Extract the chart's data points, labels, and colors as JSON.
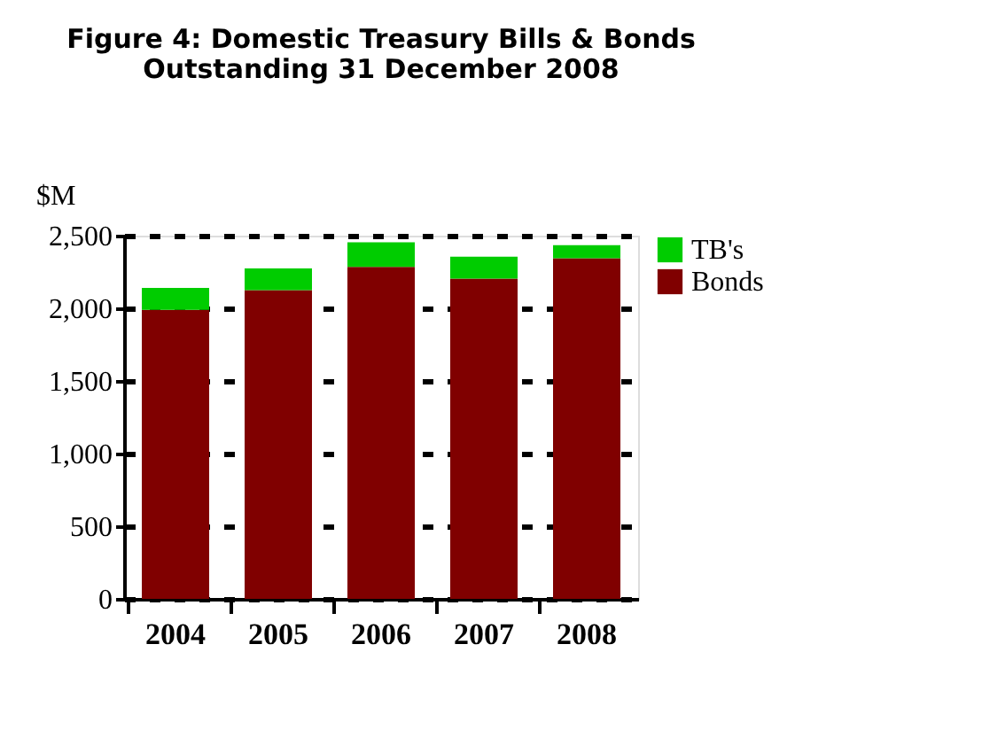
{
  "chart_data": {
    "type": "bar",
    "title": [
      "Figure 4: Domestic Treasury Bills & Bonds",
      "Outstanding 31 December  2008"
    ],
    "ylabel": "$M",
    "categories": [
      "2004",
      "2005",
      "2006",
      "2007",
      "2008"
    ],
    "stacked": true,
    "series": [
      {
        "name": "Bonds",
        "color": "#800000",
        "values": [
          1990,
          2125,
          2285,
          2205,
          2345
        ]
      },
      {
        "name": "TB's",
        "color": "#00cc00",
        "values": [
          150,
          150,
          170,
          150,
          90
        ]
      }
    ],
    "ylim": [
      0,
      2500
    ],
    "yticks": [
      {
        "value": 0,
        "label": "0"
      },
      {
        "value": 500,
        "label": "500"
      },
      {
        "value": 1000,
        "label": "1,000"
      },
      {
        "value": 1500,
        "label": "1,500"
      },
      {
        "value": 2000,
        "label": "2,000"
      },
      {
        "value": 2500,
        "label": "2,500"
      }
    ],
    "grid": "y",
    "legend": "right"
  }
}
